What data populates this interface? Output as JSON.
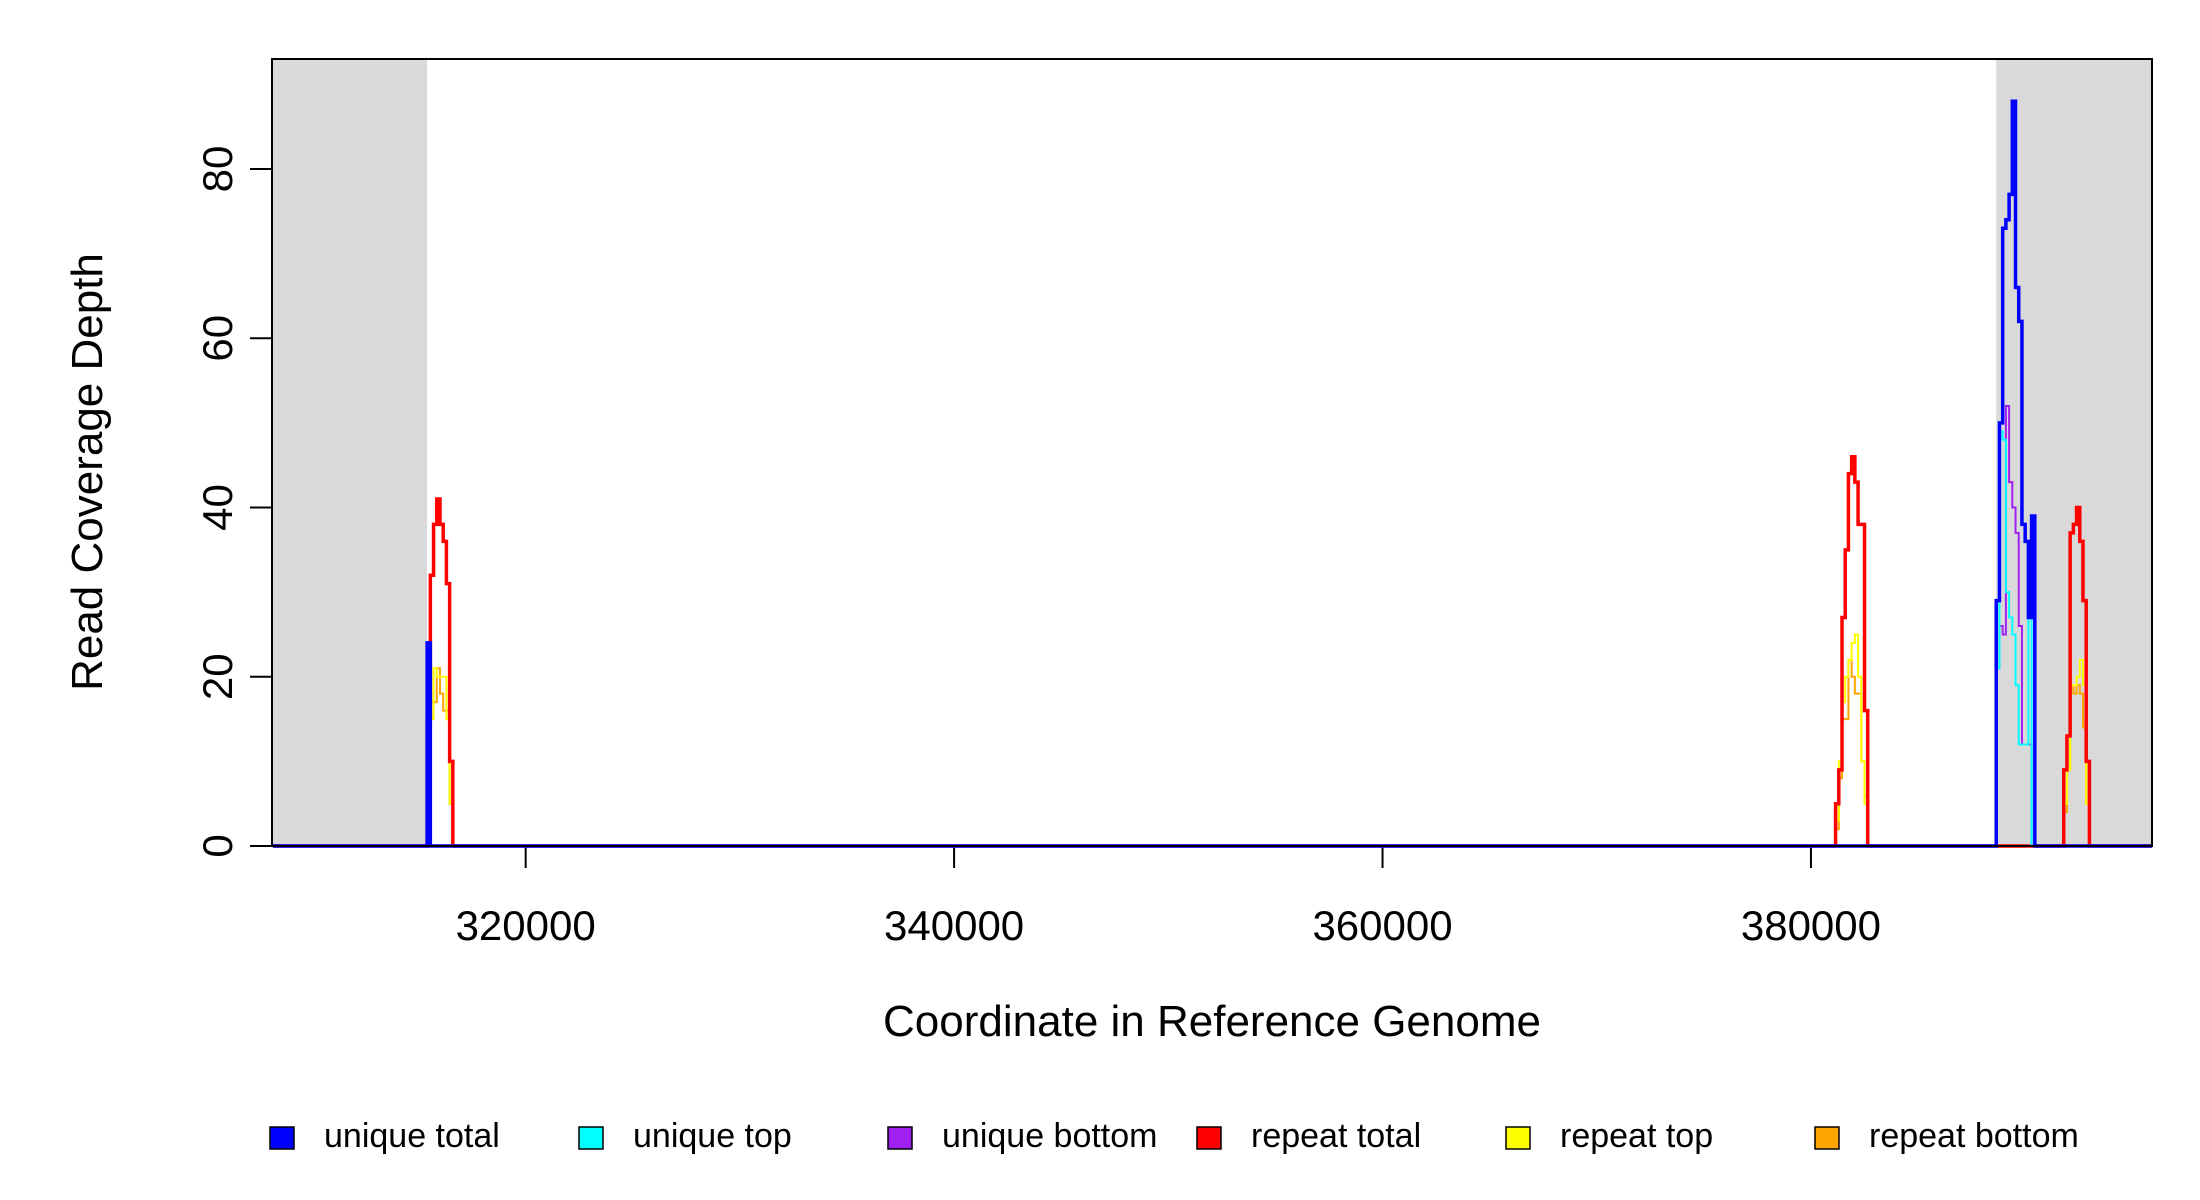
{
  "chart_data": {
    "type": "line",
    "step": true,
    "xlabel": "Coordinate in Reference Genome",
    "ylabel": "Read Coverage Depth",
    "xlim": [
      308158,
      395921
    ],
    "ylim": [
      0,
      93
    ],
    "xticks": [
      320000,
      340000,
      360000,
      380000
    ],
    "yticks": [
      0,
      20,
      40,
      60,
      80
    ],
    "shaded_regions": [
      [
        308158,
        315400
      ],
      [
        388650,
        395921
      ]
    ],
    "shade_color": "#d9d9d9",
    "legend": "bottom",
    "x": [
      308200,
      315400,
      315550,
      315700,
      315850,
      316000,
      316150,
      316300,
      316450,
      316600,
      381150,
      381300,
      381450,
      381600,
      381750,
      381900,
      382050,
      382200,
      382350,
      382500,
      382650,
      388650,
      388800,
      388950,
      389100,
      389250,
      389400,
      389550,
      389700,
      389850,
      390000,
      390150,
      390300,
      390450,
      391800,
      391950,
      392100,
      392250,
      392400,
      392550,
      392700,
      392850,
      393000,
      395900
    ],
    "series": [
      {
        "name": "unique total",
        "color": "#0000ff",
        "values": [
          0,
          24,
          0,
          0,
          0,
          0,
          0,
          0,
          0,
          0,
          0,
          0,
          0,
          0,
          0,
          0,
          0,
          0,
          0,
          0,
          0,
          29,
          50,
          73,
          74,
          77,
          88,
          66,
          62,
          38,
          36,
          27,
          39,
          0,
          0,
          0,
          0,
          0,
          0,
          0,
          0,
          0,
          0,
          0
        ]
      },
      {
        "name": "unique top",
        "color": "#00ffff",
        "values": [
          0,
          12,
          0,
          0,
          0,
          0,
          0,
          0,
          0,
          0,
          0,
          0,
          0,
          0,
          0,
          0,
          0,
          0,
          0,
          0,
          0,
          21,
          49,
          48,
          30,
          27,
          25,
          19,
          12,
          12,
          12,
          27,
          0,
          0,
          0,
          0,
          0,
          0,
          0,
          0,
          0,
          0,
          0,
          0
        ]
      },
      {
        "name": "unique bottom",
        "color": "#a020f0",
        "values": [
          0,
          15,
          0,
          0,
          0,
          0,
          0,
          0,
          0,
          0,
          0,
          0,
          0,
          0,
          0,
          0,
          0,
          0,
          0,
          0,
          0,
          21,
          26,
          25,
          52,
          43,
          40,
          37,
          26,
          12,
          12,
          12,
          0,
          0,
          0,
          0,
          0,
          0,
          0,
          0,
          0,
          0,
          0,
          0
        ]
      },
      {
        "name": "repeat total",
        "color": "#ff0000",
        "values": [
          0,
          15,
          32,
          38,
          41,
          38,
          36,
          31,
          10,
          0,
          5,
          9,
          27,
          35,
          44,
          46,
          43,
          38,
          38,
          16,
          0,
          0,
          0,
          0,
          0,
          0,
          0,
          0,
          0,
          0,
          0,
          0,
          0,
          0,
          9,
          13,
          37,
          38,
          40,
          36,
          29,
          10,
          0,
          0
        ]
      },
      {
        "name": "repeat top",
        "color": "#ffff00",
        "values": [
          0,
          10,
          15,
          21,
          20,
          20,
          20,
          15,
          5,
          0,
          3,
          10,
          17,
          20,
          22,
          24,
          25,
          20,
          10,
          5,
          0,
          0,
          0,
          0,
          0,
          0,
          0,
          0,
          0,
          0,
          0,
          0,
          0,
          0,
          5,
          9,
          19,
          19,
          20,
          22,
          19,
          5,
          0,
          0
        ]
      },
      {
        "name": "repeat bottom",
        "color": "#ffa500",
        "values": [
          0,
          5,
          17,
          17,
          21,
          18,
          16,
          16,
          5,
          0,
          2,
          8,
          15,
          15,
          22,
          20,
          18,
          18,
          10,
          6,
          0,
          0,
          0,
          0,
          0,
          0,
          0,
          0,
          0,
          0,
          0,
          0,
          0,
          0,
          4,
          9,
          19,
          18,
          19,
          18,
          14,
          5,
          0,
          0
        ]
      }
    ]
  }
}
